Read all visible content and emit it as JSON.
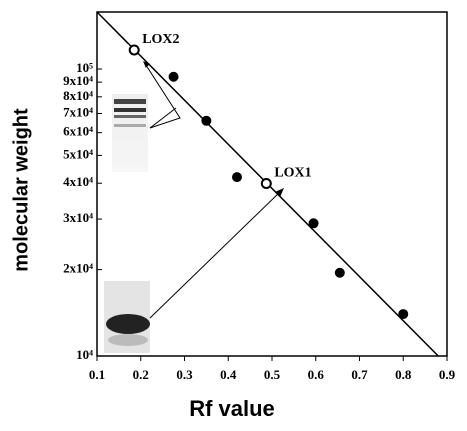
{
  "chart_data": {
    "type": "scatter",
    "xlabel": "Rf value",
    "ylabel": "molecular weight",
    "xlim": [
      0.1,
      0.9
    ],
    "ylim": [
      10000,
      158000
    ],
    "log_y": true,
    "color": "#000000",
    "xticks": [
      0.1,
      0.2,
      0.3,
      0.4,
      0.5,
      0.6,
      0.7,
      0.8,
      0.9
    ],
    "yticks": [
      {
        "value": 10000,
        "label": "10⁴"
      },
      {
        "value": 20000,
        "label": "2x10⁴"
      },
      {
        "value": 30000,
        "label": "3x10⁴"
      },
      {
        "value": 40000,
        "label": "4x10⁴"
      },
      {
        "value": 50000,
        "label": "5x10⁴"
      },
      {
        "value": 60000,
        "label": "6x10⁴"
      },
      {
        "value": 70000,
        "label": "7x10⁴"
      },
      {
        "value": 80000,
        "label": "8x10⁴"
      },
      {
        "value": 90000,
        "label": "9x10⁴"
      },
      {
        "value": 100000,
        "label": "10⁵"
      }
    ],
    "fit_line": {
      "x": [
        0.1,
        0.88
      ],
      "values": [
        158000,
        10000
      ]
    },
    "series": [
      {
        "x": [
          0.275,
          0.35,
          0.42,
          0.595,
          0.655,
          0.8
        ],
        "values": [
          94000,
          66000,
          42000,
          29000,
          19500,
          14000
        ],
        "filled": true
      },
      {
        "x": [
          0.185,
          0.487
        ],
        "values": [
          116500,
          39900
        ],
        "labels": [
          "LOX2",
          "LOX1"
        ],
        "filled": false
      }
    ]
  }
}
